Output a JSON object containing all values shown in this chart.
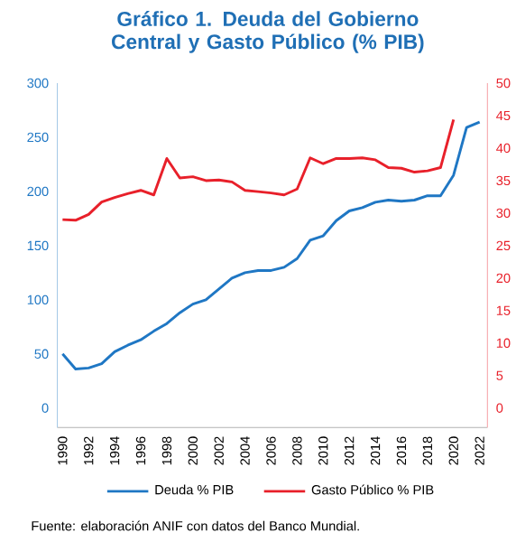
{
  "chart_data": {
    "type": "line",
    "title": "Gráfico 1. Deuda del Gobierno Central y Gasto Público (% PIB)",
    "x": [
      1990,
      1991,
      1992,
      1993,
      1994,
      1995,
      1996,
      1997,
      1998,
      1999,
      2000,
      2001,
      2002,
      2003,
      2004,
      2005,
      2006,
      2007,
      2008,
      2009,
      2010,
      2011,
      2012,
      2013,
      2014,
      2015,
      2016,
      2017,
      2018,
      2019,
      2020,
      2021,
      2022
    ],
    "series": [
      {
        "name": "Deuda % PIB",
        "color": "#1f77c4",
        "values": [
          50,
          36,
          37,
          41,
          52,
          58,
          63,
          71,
          78,
          88,
          96,
          100,
          110,
          120,
          125,
          127,
          127,
          130,
          138,
          155,
          159,
          173,
          182,
          185,
          190,
          192,
          191,
          192,
          196,
          196,
          215,
          259,
          264
        ]
      },
      {
        "name": "Gasto Público % PIB",
        "color": "#e8202a",
        "axis": "y2",
        "values": [
          29.0,
          28.9,
          29.8,
          31.7,
          32.4,
          33.0,
          33.5,
          32.8,
          38.4,
          35.4,
          35.6,
          35.0,
          35.1,
          34.8,
          33.5,
          33.3,
          33.1,
          32.8,
          33.7,
          38.5,
          37.6,
          38.4,
          38.4,
          38.5,
          38.2,
          37.0,
          36.9,
          36.3,
          36.5,
          37.0,
          44.4,
          null,
          null
        ]
      }
    ],
    "xlim": [
      1989.6,
      2022.6
    ],
    "xticks": [
      1990,
      1992,
      1994,
      1996,
      1998,
      2000,
      2002,
      2004,
      2006,
      2008,
      2010,
      2012,
      2014,
      2016,
      2018,
      2020,
      2022
    ],
    "ylim": [
      -18,
      300
    ],
    "yticks": [
      0,
      50,
      100,
      150,
      200,
      250,
      300
    ],
    "y2lim": [
      -3,
      50
    ],
    "y2ticks": [
      0,
      5,
      10,
      15,
      20,
      25,
      30,
      35,
      40,
      45,
      50
    ],
    "marker": "none",
    "line_style": "solid",
    "legend": "bottom",
    "annotations": [
      "Fuente: elaboración ANIF con datos del Banco Mundial."
    ]
  }
}
